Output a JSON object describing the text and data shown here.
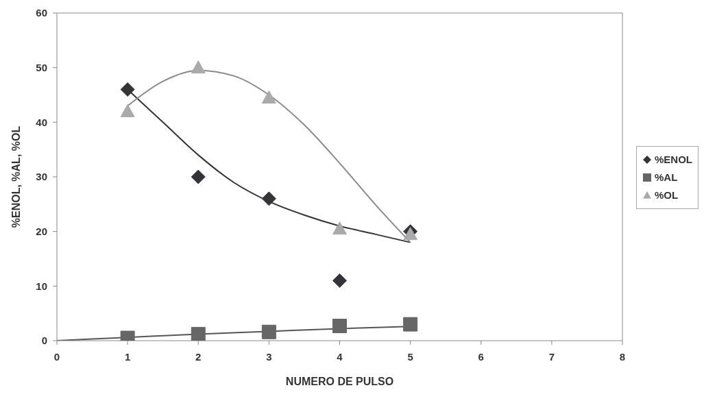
{
  "chart_data": {
    "type": "scatter",
    "xlabel": "NUMERO DE PULSO",
    "ylabel": "%ENOL, %AL, %OL",
    "xlim": [
      0,
      8
    ],
    "xticks": [
      0,
      1,
      2,
      3,
      4,
      5,
      6,
      7,
      8
    ],
    "ylim": [
      0,
      60
    ],
    "yticks": [
      0,
      10,
      20,
      30,
      40,
      50,
      60
    ],
    "grid": false,
    "legend": "right",
    "series": [
      {
        "name": "%ENOL",
        "marker": "diamond",
        "color": "#333338",
        "x": [
          1,
          2,
          3,
          4,
          5
        ],
        "values": [
          46,
          30,
          26,
          11,
          20
        ]
      },
      {
        "name": "%AL",
        "marker": "square",
        "color": "#666666",
        "x": [
          1,
          2,
          3,
          4,
          5
        ],
        "values": [
          0.5,
          1.2,
          1.6,
          2.7,
          3
        ]
      },
      {
        "name": "%OL",
        "marker": "triangle",
        "color": "#aaaaaa",
        "x": [
          1,
          2,
          3,
          4,
          5
        ],
        "values": [
          42,
          50,
          44.5,
          20.5,
          19.5
        ]
      },
      {
        "type": "line",
        "color": "#333333",
        "x": [
          1,
          1.5,
          2,
          2.5,
          3,
          3.5,
          4,
          4.5,
          5
        ],
        "values": [
          46,
          40,
          34,
          29,
          25.5,
          23,
          21,
          19.5,
          18
        ]
      },
      {
        "type": "line",
        "color": "#555555",
        "x": [
          0,
          1,
          2,
          3,
          4,
          5
        ],
        "values": [
          0,
          0.6,
          1.2,
          1.7,
          2.2,
          2.6
        ]
      },
      {
        "type": "line",
        "color": "#8a8a8a",
        "x": [
          1,
          1.5,
          2,
          2.5,
          3,
          3.5,
          4,
          4.5,
          5
        ],
        "values": [
          43,
          47.5,
          49.5,
          48.5,
          45,
          39.5,
          32.5,
          25,
          18
        ]
      }
    ]
  }
}
